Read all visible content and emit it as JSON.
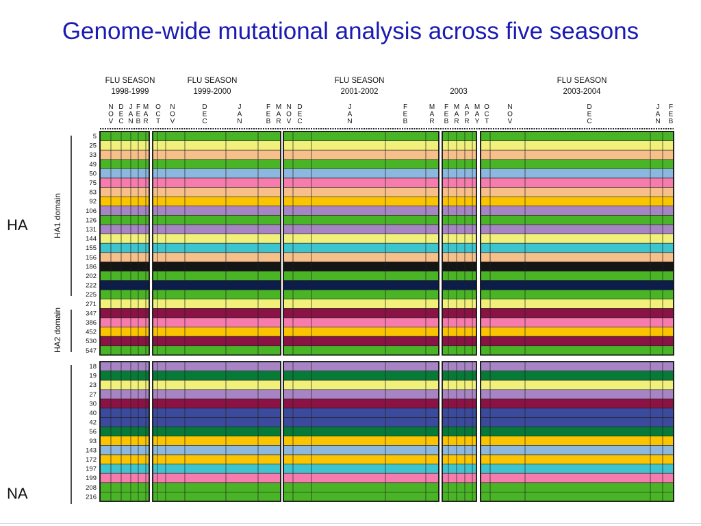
{
  "title": "Genome-wide mutational analysis across five seasons",
  "labels": {
    "ha": "HA",
    "na": "NA",
    "ha1_domain": "HA1 domain",
    "ha2_domain": "HA2 domain"
  },
  "seasons": [
    {
      "line1": "FLU SEASON",
      "line2": "1998-1999"
    },
    {
      "line1": "FLU SEASON",
      "line2": "1999-2000"
    },
    {
      "line1": "FLU SEASON",
      "line2": "2001-2002"
    },
    {
      "line1": "",
      "line2": "2003"
    },
    {
      "line1": "FLU SEASON",
      "line2": "2003-2004"
    }
  ],
  "months": [
    "NOV",
    "DEC",
    "JAN",
    "FEB",
    "MAR",
    "OCT",
    "NOV",
    "DEC",
    "JAN",
    "FEB",
    "MAR",
    "NOV",
    "DEC",
    "JAN",
    "FEB",
    "MAR",
    "FEB",
    "MAR",
    "APR",
    "MAY",
    "OCT",
    "NOV",
    "DEC",
    "JAN",
    "FEB"
  ],
  "colors": {
    "G": "#49b526",
    "Y": "#f0f07a",
    "O": "#f7c08a",
    "M": "#8a1245",
    "K": "#151515",
    "L": "#8cb8e0",
    "P": "#f67cae",
    "A": "#fac400",
    "D": "#087a38",
    "V": "#a784c4",
    "C": "#3ec4cf",
    "N": "#0c1d4c",
    "R": "#f4560f",
    "B": "#3b4a9c",
    "Q": "#c0309c"
  },
  "ha_positions": [
    "5",
    "25",
    "33",
    "49",
    "50",
    "75",
    "83",
    "92",
    "106",
    "126",
    "131",
    "144",
    "155",
    "156",
    "186",
    "202",
    "222",
    "225",
    "271",
    "347",
    "386",
    "452",
    "530",
    "547"
  ],
  "na_positions": [
    "18",
    "19",
    "23",
    "27",
    "30",
    "40",
    "42",
    "56",
    "93",
    "143",
    "172",
    "197",
    "199",
    "208",
    "216"
  ],
  "ha_rows": [
    "G",
    "Y",
    "O",
    "G",
    "L",
    "P",
    "O",
    "A",
    "V",
    "G",
    "V",
    "Y",
    "C",
    "O",
    "K",
    "G",
    "N",
    "G",
    "Y",
    "M",
    "P",
    "A",
    "M",
    "G"
  ],
  "na_rows": [
    "V",
    "D",
    "Y",
    "V",
    "M",
    "B",
    "B",
    "D",
    "A",
    "L",
    "A",
    "C",
    "P",
    "G",
    "G"
  ]
}
